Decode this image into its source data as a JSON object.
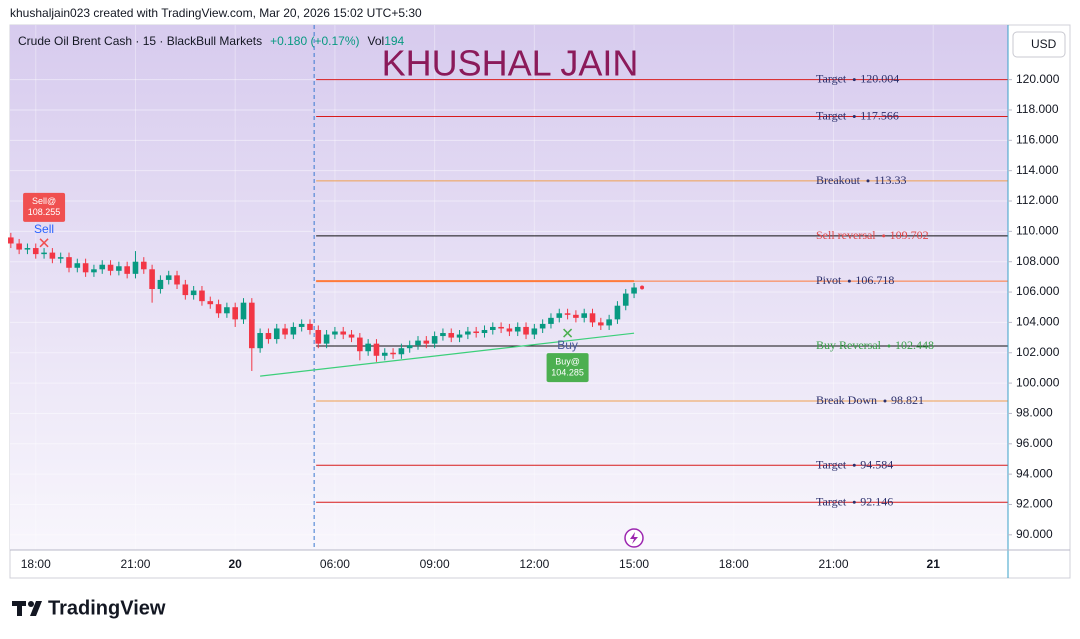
{
  "header": "khushaljain023 created with TradingView.com, Mar 20, 2026 15:02 UTC+5:30",
  "brand": "TradingView",
  "chart_data": {
    "type": "candlestick",
    "symbol": "Crude Oil Brent Cash · 15 · BlackBull Markets",
    "change": "+0.180 (+0.17%)",
    "volume_label": "Vol",
    "volume": 194,
    "watermark": "KHUSHAL JAIN",
    "currency": "USD",
    "up_color": "#089981",
    "down_color": "#f23645",
    "xlim": [
      -3.1,
      117
    ],
    "ylim": [
      89,
      123.6
    ],
    "grid": true,
    "xticks": [
      {
        "value": 0,
        "label": "18:00"
      },
      {
        "value": 12,
        "label": "21:00"
      },
      {
        "value": 24,
        "label": "20"
      },
      {
        "value": 36,
        "label": "06:00"
      },
      {
        "value": 48,
        "label": "09:00"
      },
      {
        "value": 60,
        "label": "12:00"
      },
      {
        "value": 72,
        "label": "15:00"
      },
      {
        "value": 84,
        "label": "18:00"
      },
      {
        "value": 96,
        "label": "21:00"
      },
      {
        "value": 108,
        "label": "21"
      }
    ],
    "yticks": [
      {
        "value": 90,
        "label": "90.000"
      },
      {
        "value": 92,
        "label": "92.000"
      },
      {
        "value": 94,
        "label": "94.000"
      },
      {
        "value": 96,
        "label": "96.000"
      },
      {
        "value": 98,
        "label": "98.000"
      },
      {
        "value": 100,
        "label": "100.000"
      },
      {
        "value": 102,
        "label": "102.000"
      },
      {
        "value": 104,
        "label": "104.000"
      },
      {
        "value": 106,
        "label": "106.000"
      },
      {
        "value": 108,
        "label": "108.000"
      },
      {
        "value": 110,
        "label": "110.000"
      },
      {
        "value": 112,
        "label": "112.000"
      },
      {
        "value": 114,
        "label": "114.000"
      },
      {
        "value": 116,
        "label": "116.000"
      },
      {
        "value": 118,
        "label": "118.000"
      },
      {
        "value": 120,
        "label": "120.000"
      }
    ],
    "x": [
      -3,
      -2,
      -1,
      0,
      1,
      2,
      3,
      4,
      5,
      6,
      7,
      8,
      9,
      10,
      11,
      12,
      13,
      14,
      15,
      16,
      17,
      18,
      19,
      20,
      21,
      22,
      23,
      24,
      25,
      26,
      27,
      28,
      29,
      30,
      31,
      32,
      33,
      34,
      35,
      36,
      37,
      38,
      39,
      40,
      41,
      42,
      43,
      44,
      45,
      46,
      47,
      48,
      49,
      50,
      51,
      52,
      53,
      54,
      55,
      56,
      57,
      58,
      59,
      60,
      61,
      62,
      63,
      64,
      65,
      66,
      67,
      68,
      69,
      70,
      71,
      72
    ],
    "open": [
      109.6,
      109.2,
      108.8,
      108.9,
      108.5,
      108.6,
      108.2,
      108.3,
      107.6,
      107.9,
      107.3,
      107.5,
      107.8,
      107.4,
      107.7,
      107.2,
      108.0,
      107.5,
      106.2,
      106.8,
      107.1,
      106.5,
      105.8,
      106.1,
      105.4,
      105.2,
      104.6,
      105.0,
      104.2,
      105.3,
      102.3,
      103.3,
      102.9,
      103.6,
      103.2,
      103.7,
      103.9,
      103.5,
      102.6,
      103.2,
      103.4,
      103.2,
      103.0,
      102.1,
      102.6,
      101.8,
      102.0,
      101.9,
      102.3,
      102.5,
      102.8,
      102.6,
      103.1,
      103.3,
      103.0,
      103.2,
      103.4,
      103.3,
      103.5,
      103.7,
      103.6,
      103.4,
      103.7,
      103.2,
      103.6,
      103.9,
      104.3,
      104.6,
      104.5,
      104.3,
      104.6,
      104.0,
      103.8,
      104.2,
      105.1,
      105.9
    ],
    "high": [
      109.9,
      109.5,
      109.2,
      109.2,
      108.9,
      108.9,
      108.6,
      108.6,
      108.2,
      108.2,
      107.8,
      108.1,
      108.1,
      108.0,
      108.0,
      108.7,
      108.3,
      107.8,
      107.1,
      107.4,
      107.4,
      106.8,
      106.4,
      106.4,
      105.7,
      105.5,
      105.3,
      105.3,
      105.6,
      105.6,
      103.6,
      103.6,
      103.9,
      103.9,
      104.0,
      104.2,
      104.2,
      103.8,
      103.5,
      103.7,
      103.7,
      103.5,
      103.3,
      102.9,
      102.9,
      102.3,
      102.3,
      102.6,
      102.8,
      103.1,
      103.1,
      103.4,
      103.6,
      103.6,
      103.5,
      103.7,
      103.7,
      103.8,
      104.0,
      104.0,
      103.9,
      104.0,
      104.0,
      103.9,
      104.2,
      104.6,
      104.9,
      104.9,
      104.8,
      104.9,
      104.9,
      104.3,
      104.5,
      105.4,
      106.2,
      106.6
    ],
    "low": [
      108.9,
      108.5,
      108.5,
      108.2,
      108.2,
      107.9,
      107.9,
      107.3,
      107.3,
      107.0,
      107.0,
      107.2,
      107.1,
      107.1,
      106.9,
      106.9,
      107.2,
      105.3,
      105.9,
      106.5,
      106.2,
      105.5,
      105.5,
      105.1,
      104.9,
      104.3,
      104.3,
      103.7,
      103.9,
      100.8,
      102.0,
      102.6,
      102.6,
      102.9,
      102.9,
      103.4,
      103.2,
      102.3,
      102.3,
      102.9,
      102.9,
      102.7,
      101.5,
      101.8,
      101.4,
      101.5,
      101.6,
      101.6,
      102.0,
      102.2,
      102.3,
      102.3,
      102.8,
      102.7,
      102.7,
      102.9,
      103.0,
      103.0,
      103.2,
      103.3,
      103.1,
      103.1,
      102.9,
      102.9,
      103.3,
      103.6,
      104.0,
      104.2,
      104.0,
      104.0,
      103.7,
      103.5,
      103.5,
      103.9,
      104.8,
      105.6
    ],
    "close": [
      109.2,
      108.8,
      108.9,
      108.5,
      108.6,
      108.2,
      108.3,
      107.6,
      107.9,
      107.3,
      107.5,
      107.8,
      107.4,
      107.7,
      107.2,
      108.0,
      107.5,
      106.2,
      106.8,
      107.1,
      106.5,
      105.8,
      106.1,
      105.4,
      105.2,
      104.6,
      105.0,
      104.2,
      105.3,
      102.3,
      103.3,
      102.9,
      103.6,
      103.2,
      103.7,
      103.9,
      103.5,
      102.6,
      103.2,
      103.4,
      103.2,
      103.0,
      102.1,
      102.6,
      101.8,
      102.0,
      101.9,
      102.3,
      102.5,
      102.8,
      102.6,
      103.1,
      103.3,
      103.0,
      103.2,
      103.4,
      103.3,
      103.5,
      103.7,
      103.6,
      103.4,
      103.7,
      103.2,
      103.6,
      103.9,
      104.3,
      104.6,
      104.5,
      104.3,
      104.6,
      104.0,
      103.8,
      104.2,
      105.1,
      105.9,
      106.3
    ],
    "session_break_x": 33.5,
    "trendline": {
      "x": [
        27,
        72
      ],
      "y": [
        100.46,
        103.29
      ],
      "color": "#3ccf7a"
    },
    "levels": [
      {
        "label": "Target",
        "value": 120.004,
        "line_color": "#d81b1b",
        "text_color": "#2b2f6b"
      },
      {
        "label": "Target",
        "value": 117.566,
        "line_color": "#d81b1b",
        "text_color": "#2b2f6b"
      },
      {
        "label": "Breakout",
        "value": 113.33,
        "line_color": "#f0a050",
        "text_color": "#2b2f6b"
      },
      {
        "label": "Sell reversal",
        "value": 109.702,
        "line_color": "#111111",
        "text_color": "#e04848"
      },
      {
        "label": "Pivot",
        "value": 106.718,
        "line_color": "#ff7a3a",
        "text_color": "#2b2f6b"
      },
      {
        "label": "Buy Reversal",
        "value": 102.448,
        "line_color": "#111111",
        "text_color": "#3aa04a"
      },
      {
        "label": "Break Down",
        "value": 98.821,
        "line_color": "#f0a050",
        "text_color": "#2b2f6b"
      },
      {
        "label": "Target",
        "value": 94.584,
        "line_color": "#d81b1b",
        "text_color": "#2b2f6b"
      },
      {
        "label": "Target",
        "value": 92.146,
        "line_color": "#d81b1b",
        "text_color": "#2b2f6b"
      }
    ],
    "signals": [
      {
        "tag": "Sell",
        "label": "Sell@",
        "price": 108.255,
        "x": 1,
        "color": "#f05050"
      },
      {
        "tag": "Buy",
        "label": "Buy@",
        "price": 104.285,
        "x": 64,
        "color": "#4caf50"
      }
    ]
  }
}
